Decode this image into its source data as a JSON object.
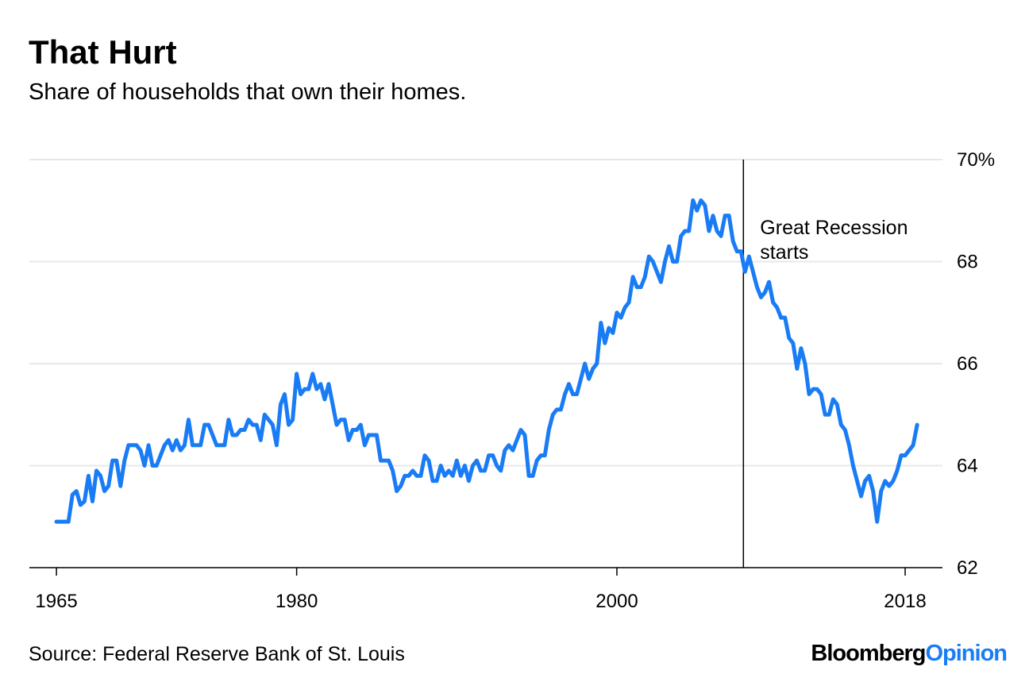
{
  "chart_data": {
    "type": "line",
    "title": "That Hurt",
    "subtitle": "Share of households that own their homes.",
    "source": "Source: Federal Reserve Bank of St. Louis",
    "logo": [
      "Bloomberg",
      "Opinion"
    ],
    "color": "#1a7cf5",
    "grid": true,
    "xlim": [
      1963.31,
      2020.33
    ],
    "ylim": [
      62,
      70
    ],
    "xticks": [
      1965,
      1980,
      2000,
      2018
    ],
    "yticks": [
      62,
      64,
      66,
      68,
      {
        "value": 70,
        "label": "70%"
      }
    ],
    "annotation": {
      "x": 2007.9,
      "text": [
        "Great Recession",
        "starts"
      ]
    },
    "x": [
      1965.0,
      1965.5,
      1965.75,
      1966.0,
      1966.25,
      1966.5,
      1966.75,
      1967.0,
      1967.25,
      1967.5,
      1967.75,
      1968.0,
      1968.25,
      1968.5,
      1968.75,
      1969.0,
      1969.25,
      1969.5,
      1969.75,
      1970.0,
      1970.25,
      1970.5,
      1970.75,
      1971.0,
      1971.25,
      1971.5,
      1971.75,
      1972.0,
      1972.25,
      1972.5,
      1972.75,
      1973.0,
      1973.25,
      1973.5,
      1974.0,
      1974.25,
      1974.5,
      1974.75,
      1975.0,
      1975.5,
      1975.75,
      1976.0,
      1976.25,
      1976.5,
      1976.75,
      1977.0,
      1977.25,
      1977.5,
      1977.75,
      1978.0,
      1978.25,
      1978.5,
      1978.75,
      1979.0,
      1979.25,
      1979.5,
      1979.75,
      1980.0,
      1980.25,
      1980.5,
      1980.75,
      1981.0,
      1981.25,
      1981.5,
      1981.75,
      1982.0,
      1982.25,
      1982.5,
      1982.75,
      1983.0,
      1983.25,
      1983.5,
      1983.75,
      1984.0,
      1984.25,
      1984.5,
      1984.75,
      1985.0,
      1985.25,
      1985.5,
      1985.75,
      1986.0,
      1986.25,
      1986.5,
      1986.75,
      1987.0,
      1987.25,
      1987.5,
      1987.75,
      1988.0,
      1988.25,
      1988.5,
      1988.75,
      1989.0,
      1989.25,
      1989.5,
      1989.75,
      1990.0,
      1990.25,
      1990.5,
      1990.75,
      1991.0,
      1991.25,
      1991.5,
      1991.75,
      1992.0,
      1992.25,
      1992.5,
      1992.75,
      1993.0,
      1993.25,
      1993.5,
      1993.75,
      1994.0,
      1994.25,
      1994.5,
      1994.75,
      1995.0,
      1995.25,
      1995.5,
      1995.75,
      1996.0,
      1996.25,
      1996.5,
      1996.75,
      1997.0,
      1997.25,
      1997.5,
      1997.75,
      1998.0,
      1998.25,
      1998.5,
      1998.75,
      1999.0,
      1999.25,
      1999.5,
      1999.75,
      2000.0,
      2000.25,
      2000.5,
      2000.75,
      2001.0,
      2001.25,
      2001.5,
      2001.75,
      2002.0,
      2002.25,
      2002.5,
      2002.75,
      2003.0,
      2003.25,
      2003.5,
      2003.75,
      2004.0,
      2004.25,
      2004.5,
      2004.75,
      2005.0,
      2005.25,
      2005.5,
      2005.75,
      2006.0,
      2006.25,
      2006.5,
      2006.75,
      2007.0,
      2007.25,
      2007.5,
      2007.75,
      2008.0,
      2008.25,
      2008.5,
      2008.75,
      2009.0,
      2009.25,
      2009.5,
      2009.75,
      2010.0,
      2010.25,
      2010.5,
      2010.75,
      2011.0,
      2011.25,
      2011.5,
      2011.75,
      2012.0,
      2012.25,
      2012.5,
      2012.75,
      2013.0,
      2013.25,
      2013.5,
      2013.75,
      2014.0,
      2014.25,
      2014.5,
      2014.75,
      2015.0,
      2015.25,
      2015.5,
      2015.75,
      2016.0,
      2016.25,
      2016.5,
      2016.75,
      2017.0,
      2017.25,
      2017.5,
      2017.75,
      2018.0,
      2018.25,
      2018.5,
      2018.75
    ],
    "values": [
      62.9,
      62.9,
      62.9,
      63.43,
      63.5,
      63.23,
      63.3,
      63.8,
      63.3,
      63.9,
      63.8,
      63.5,
      63.6,
      64.1,
      64.1,
      63.6,
      64.1,
      64.4,
      64.4,
      64.4,
      64.3,
      64.0,
      64.4,
      64.0,
      64.0,
      64.2,
      64.4,
      64.5,
      64.3,
      64.5,
      64.3,
      64.4,
      64.9,
      64.4,
      64.4,
      64.8,
      64.8,
      64.6,
      64.4,
      64.4,
      64.9,
      64.6,
      64.6,
      64.7,
      64.7,
      64.9,
      64.8,
      64.8,
      64.5,
      65.0,
      64.9,
      64.8,
      64.4,
      65.2,
      65.4,
      64.8,
      64.9,
      65.8,
      65.4,
      65.5,
      65.5,
      65.8,
      65.5,
      65.6,
      65.3,
      65.6,
      65.2,
      64.8,
      64.9,
      64.9,
      64.5,
      64.7,
      64.7,
      64.8,
      64.4,
      64.6,
      64.6,
      64.6,
      64.1,
      64.1,
      64.1,
      63.9,
      63.5,
      63.6,
      63.8,
      63.8,
      63.9,
      63.8,
      63.8,
      64.2,
      64.1,
      63.7,
      63.7,
      64.0,
      63.8,
      63.9,
      63.8,
      64.1,
      63.8,
      64.0,
      63.7,
      64.0,
      64.1,
      63.9,
      63.9,
      64.2,
      64.2,
      64.0,
      63.9,
      64.3,
      64.4,
      64.3,
      64.5,
      64.7,
      64.6,
      63.8,
      63.8,
      64.1,
      64.2,
      64.2,
      64.7,
      65.0,
      65.1,
      65.1,
      65.4,
      65.6,
      65.4,
      65.4,
      65.7,
      66.0,
      65.7,
      65.9,
      66.0,
      66.8,
      66.4,
      66.7,
      66.6,
      67.0,
      66.9,
      67.1,
      67.2,
      67.7,
      67.5,
      67.5,
      67.7,
      68.1,
      68.0,
      67.8,
      67.6,
      68.0,
      68.3,
      68.0,
      68.0,
      68.5,
      68.6,
      68.6,
      69.2,
      69.0,
      69.2,
      69.1,
      68.6,
      68.9,
      68.6,
      68.5,
      68.9,
      68.9,
      68.4,
      68.2,
      68.2,
      67.8,
      68.1,
      67.8,
      67.5,
      67.3,
      67.4,
      67.6,
      67.2,
      67.1,
      66.9,
      66.9,
      66.5,
      66.4,
      65.9,
      66.3,
      66.0,
      65.4,
      65.5,
      65.5,
      65.4,
      65.0,
      65.0,
      65.3,
      65.2,
      64.8,
      64.7,
      64.4,
      64.0,
      63.7,
      63.4,
      63.7,
      63.8,
      63.5,
      62.9,
      63.5,
      63.7,
      63.6,
      63.7,
      63.9,
      64.2,
      64.2,
      64.3,
      64.4,
      64.8
    ]
  }
}
